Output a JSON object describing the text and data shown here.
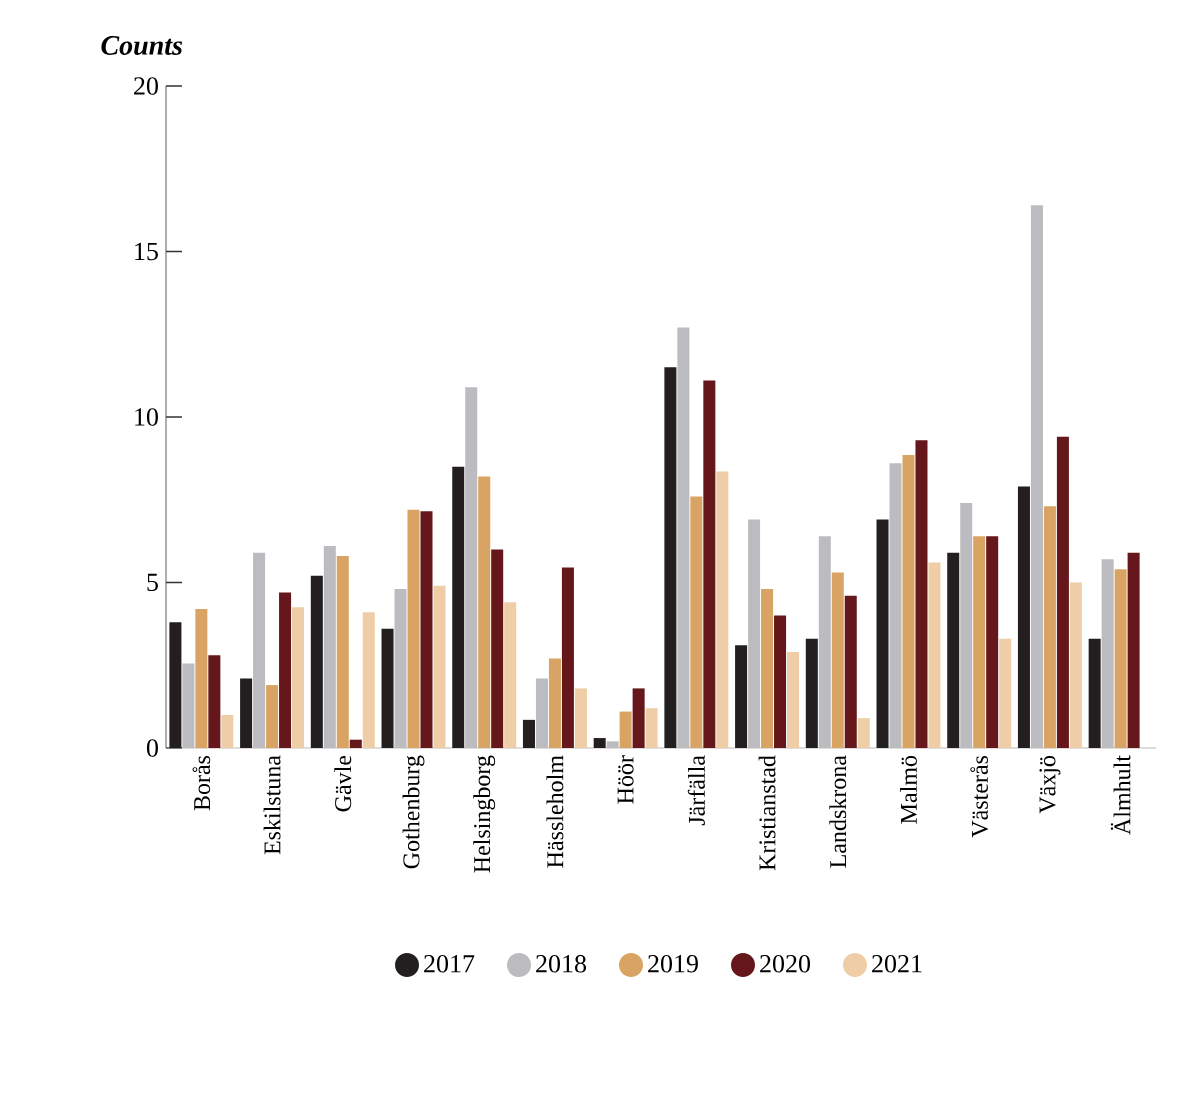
{
  "chart_data": {
    "type": "bar",
    "title": "Counts",
    "categories": [
      "Borås",
      "Eskilstuna",
      "Gävle",
      "Gothenburg",
      "Helsingborg",
      "Hässleholm",
      "Höör",
      "Järfälla",
      "Kristianstad",
      "Landskrona",
      "Malmö",
      "Västerås",
      "Växjö",
      "Älmhult"
    ],
    "series": [
      {
        "name": "2017",
        "color": "#231f20",
        "values": [
          3.8,
          2.1,
          5.2,
          3.6,
          8.5,
          0.85,
          0.3,
          11.5,
          3.1,
          3.3,
          6.9,
          5.9,
          7.9,
          3.3
        ]
      },
      {
        "name": "2018",
        "color": "#bcbcc0",
        "values": [
          2.55,
          5.9,
          6.1,
          4.8,
          10.9,
          2.1,
          0.2,
          12.7,
          6.9,
          6.4,
          8.6,
          7.4,
          16.4,
          5.7
        ]
      },
      {
        "name": "2019",
        "color": "#d9a463",
        "values": [
          4.2,
          1.9,
          5.8,
          7.2,
          8.2,
          2.7,
          1.1,
          7.6,
          4.8,
          5.3,
          8.85,
          6.4,
          7.3,
          5.4
        ]
      },
      {
        "name": "2020",
        "color": "#65171b",
        "values": [
          2.8,
          4.7,
          0.25,
          7.15,
          6.0,
          5.45,
          1.8,
          11.1,
          4.0,
          4.6,
          9.3,
          6.4,
          9.4,
          5.9
        ]
      },
      {
        "name": "2021",
        "color": "#efcea7",
        "values": [
          1.0,
          4.25,
          4.1,
          4.9,
          4.4,
          1.8,
          1.2,
          8.35,
          2.9,
          0.9,
          5.6,
          3.3,
          5.0,
          null
        ]
      }
    ],
    "ylim": [
      0,
      20
    ],
    "yticks": [
      0,
      5,
      10,
      15,
      20
    ],
    "legend": "bottom"
  }
}
